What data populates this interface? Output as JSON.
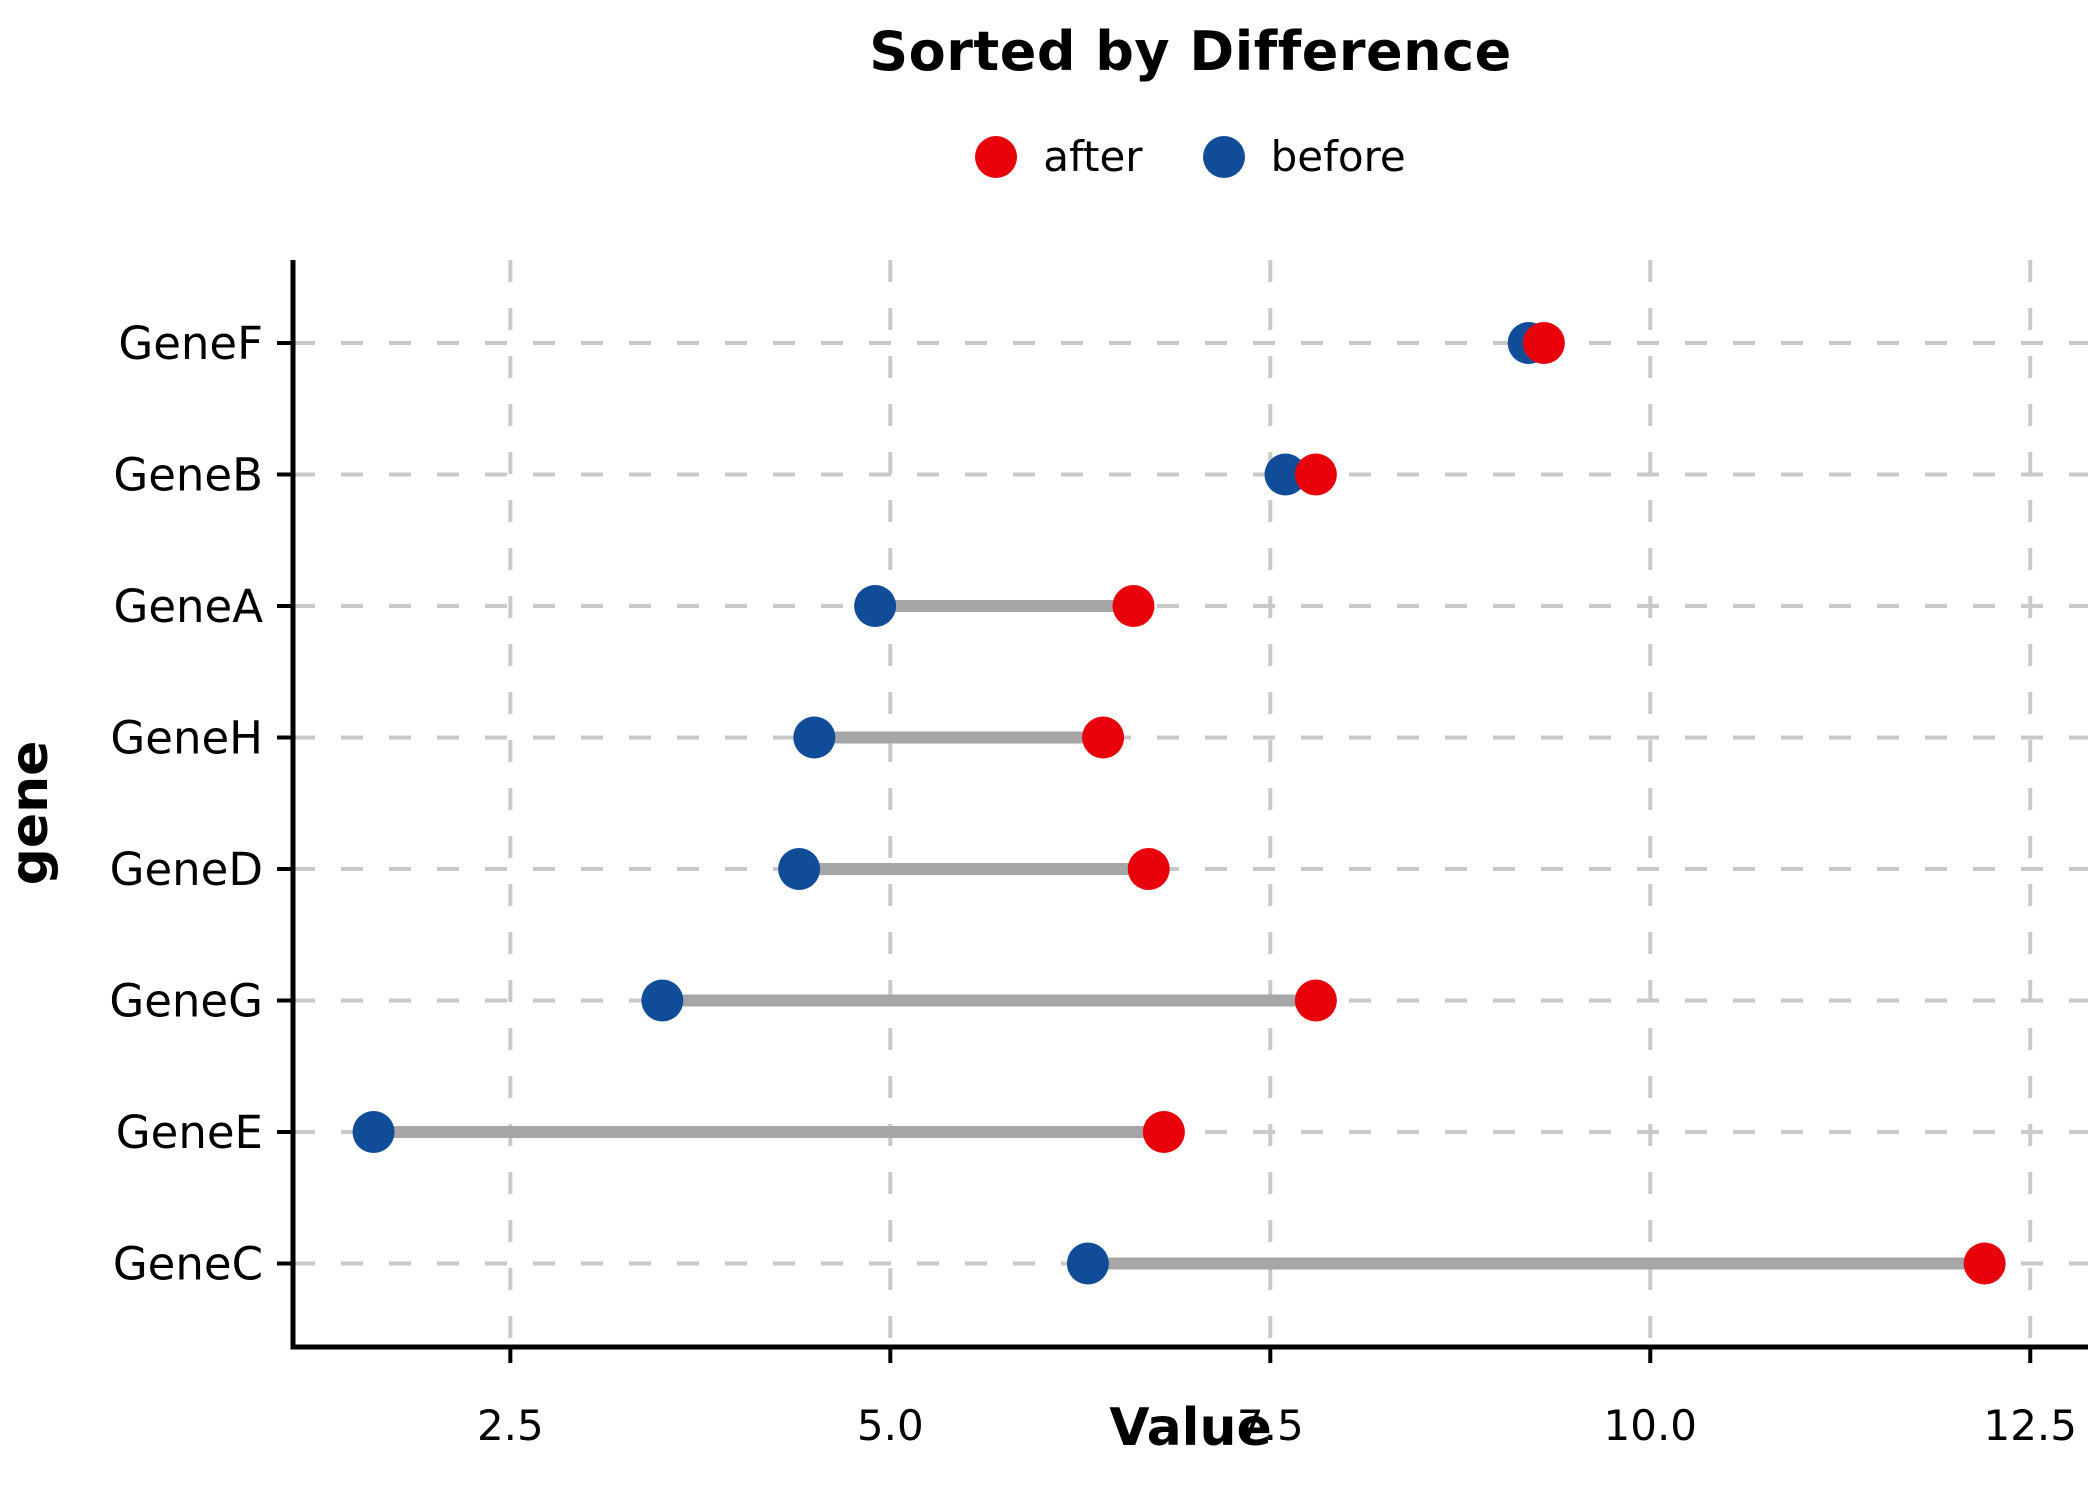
{
  "title": "Sorted by Difference",
  "axes": {
    "xlabel": "Value",
    "ylabel": "gene"
  },
  "legend": {
    "items": [
      "after",
      "before"
    ]
  },
  "chart_data": {
    "type": "scatter",
    "subtype": "dumbbell",
    "orientation": "horizontal",
    "title": "Sorted by Difference",
    "xlabel": "Value",
    "ylabel": "gene",
    "categories": [
      "GeneF",
      "GeneB",
      "GeneA",
      "GeneH",
      "GeneD",
      "GeneG",
      "GeneE",
      "GeneC"
    ],
    "series": [
      {
        "name": "after",
        "color": "#e8000b",
        "values": [
          9.3,
          7.8,
          6.6,
          6.4,
          6.7,
          7.8,
          6.8,
          12.2
        ]
      },
      {
        "name": "before",
        "color": "#104c97",
        "values": [
          9.2,
          7.6,
          4.9,
          4.5,
          4.4,
          3.5,
          1.6,
          6.3
        ]
      }
    ],
    "x_ticks": [
      2.5,
      5.0,
      7.5,
      10.0,
      12.5
    ],
    "x_tick_labels": [
      "2.5",
      "5.0",
      "7.5",
      "10.0",
      "12.5"
    ],
    "xlim": [
      1.07,
      12.88
    ],
    "grid": true,
    "grid_style": "dashed",
    "grid_color": "#c9c9c9",
    "connector_color": "#a6a6a6",
    "legend_position": "top-center",
    "marker_color_after": "#e8000b",
    "marker_color_before": "#104c97"
  }
}
